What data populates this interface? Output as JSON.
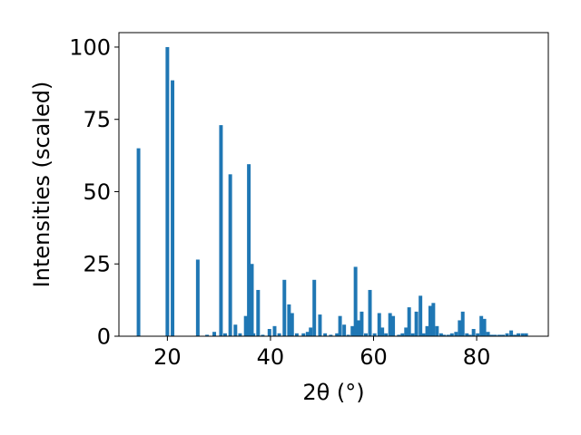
{
  "chart_data": {
    "type": "bar",
    "xlabel": "2θ (°)",
    "ylabel": "Intensities (scaled)",
    "title": "",
    "xlim": [
      10.6,
      93.9
    ],
    "ylim": [
      0,
      105
    ],
    "xticks": [
      20,
      40,
      60,
      80
    ],
    "yticks": [
      0,
      25,
      50,
      75,
      100
    ],
    "grid": false,
    "bar_color": "#1f77b4",
    "bar_width": 0.7,
    "x": [
      14.4,
      20.0,
      21.0,
      25.9,
      27.7,
      29.1,
      30.4,
      31.2,
      32.2,
      33.2,
      34.1,
      35.2,
      35.8,
      36.4,
      36.7,
      37.6,
      38.5,
      39.8,
      40.8,
      41.7,
      42.7,
      43.6,
      44.2,
      45.1,
      46.4,
      47.2,
      47.8,
      48.5,
      49.6,
      50.6,
      51.7,
      52.9,
      53.5,
      54.3,
      55.1,
      55.9,
      56.5,
      57.1,
      57.7,
      58.5,
      59.3,
      60.2,
      61.1,
      61.7,
      62.4,
      63.2,
      63.8,
      64.9,
      65.6,
      66.3,
      66.9,
      67.6,
      68.3,
      69.1,
      69.7,
      70.4,
      71.0,
      71.6,
      72.3,
      73.1,
      73.7,
      74.5,
      75.2,
      76.0,
      76.7,
      77.3,
      78.1,
      78.7,
      79.4,
      80.2,
      80.9,
      81.5,
      82.2,
      82.9,
      83.6,
      84.4,
      85.1,
      85.9,
      86.7,
      87.4,
      88.1,
      88.9,
      89.6
    ],
    "values": [
      65,
      100,
      88.5,
      26.5,
      0.5,
      1.5,
      73,
      1,
      56,
      4,
      1,
      7,
      59.5,
      25,
      1,
      16,
      0.5,
      2.5,
      3.5,
      1,
      19.5,
      11,
      8,
      1,
      1,
      1.5,
      3,
      19.5,
      7.5,
      1,
      0.5,
      1,
      7,
      4,
      0.5,
      3.5,
      24,
      5.5,
      8.5,
      1,
      16,
      1,
      8,
      3,
      1,
      8,
      7,
      0.5,
      1,
      3,
      10,
      1,
      8.5,
      14,
      1,
      3.5,
      10.5,
      11.5,
      3.5,
      1,
      0.5,
      0.5,
      1,
      1.5,
      5.5,
      8.5,
      1,
      0.5,
      2.5,
      1,
      7,
      6,
      1.5,
      0.5,
      0.5,
      0.5,
      0.5,
      1,
      2,
      0.5,
      1,
      1,
      1
    ]
  }
}
